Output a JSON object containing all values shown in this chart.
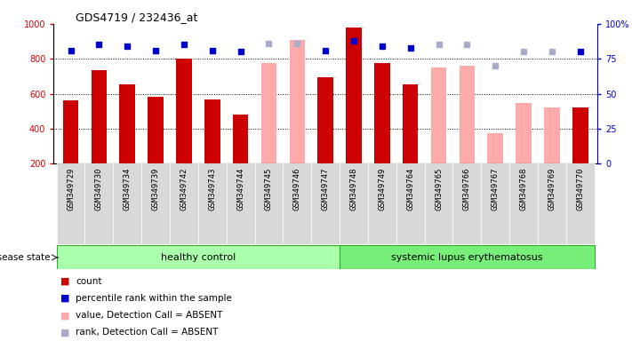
{
  "title": "GDS4719 / 232436_at",
  "samples": [
    "GSM349729",
    "GSM349730",
    "GSM349734",
    "GSM349739",
    "GSM349742",
    "GSM349743",
    "GSM349744",
    "GSM349745",
    "GSM349746",
    "GSM349747",
    "GSM349748",
    "GSM349749",
    "GSM349764",
    "GSM349765",
    "GSM349766",
    "GSM349767",
    "GSM349768",
    "GSM349769",
    "GSM349770"
  ],
  "bar_values": [
    560,
    735,
    655,
    585,
    800,
    565,
    480,
    775,
    910,
    695,
    980,
    775,
    655,
    750,
    760,
    375,
    545,
    520,
    520
  ],
  "bar_absent": [
    false,
    false,
    false,
    false,
    false,
    false,
    false,
    true,
    true,
    false,
    false,
    false,
    false,
    true,
    true,
    true,
    true,
    true,
    false
  ],
  "percentile_ranks": [
    81,
    85,
    84,
    81,
    85,
    81,
    80,
    86,
    86,
    81,
    88,
    84,
    83,
    85,
    85,
    70,
    80,
    80,
    80
  ],
  "rank_absent": [
    false,
    false,
    false,
    false,
    false,
    false,
    false,
    true,
    true,
    false,
    false,
    false,
    false,
    true,
    true,
    true,
    true,
    true,
    false
  ],
  "healthy_count": 10,
  "ylim_left": [
    200,
    1000
  ],
  "ylim_right": [
    0,
    100
  ],
  "yticks_left": [
    200,
    400,
    600,
    800,
    1000
  ],
  "yticks_right": [
    0,
    25,
    50,
    75,
    100
  ],
  "bar_color_present": "#cc0000",
  "bar_color_absent": "#ffaaaa",
  "dot_color_present": "#0000cc",
  "dot_color_absent": "#aaaacc",
  "healthy_bg": "#aaffaa",
  "lupus_bg": "#77ee77",
  "group_label_healthy": "healthy control",
  "group_label_lupus": "systemic lupus erythematosus",
  "disease_state_label": "disease state",
  "legend_labels": [
    "count",
    "percentile rank within the sample",
    "value, Detection Call = ABSENT",
    "rank, Detection Call = ABSENT"
  ],
  "legend_colors": [
    "#cc0000",
    "#0000cc",
    "#ffaaaa",
    "#aaaacc"
  ],
  "bar_width": 0.55,
  "background_color": "#ffffff",
  "tick_bg_color": "#d8d8d8",
  "grid_color": "#000000",
  "spine_color_left": "#cc0000",
  "spine_color_right": "#0000cc"
}
